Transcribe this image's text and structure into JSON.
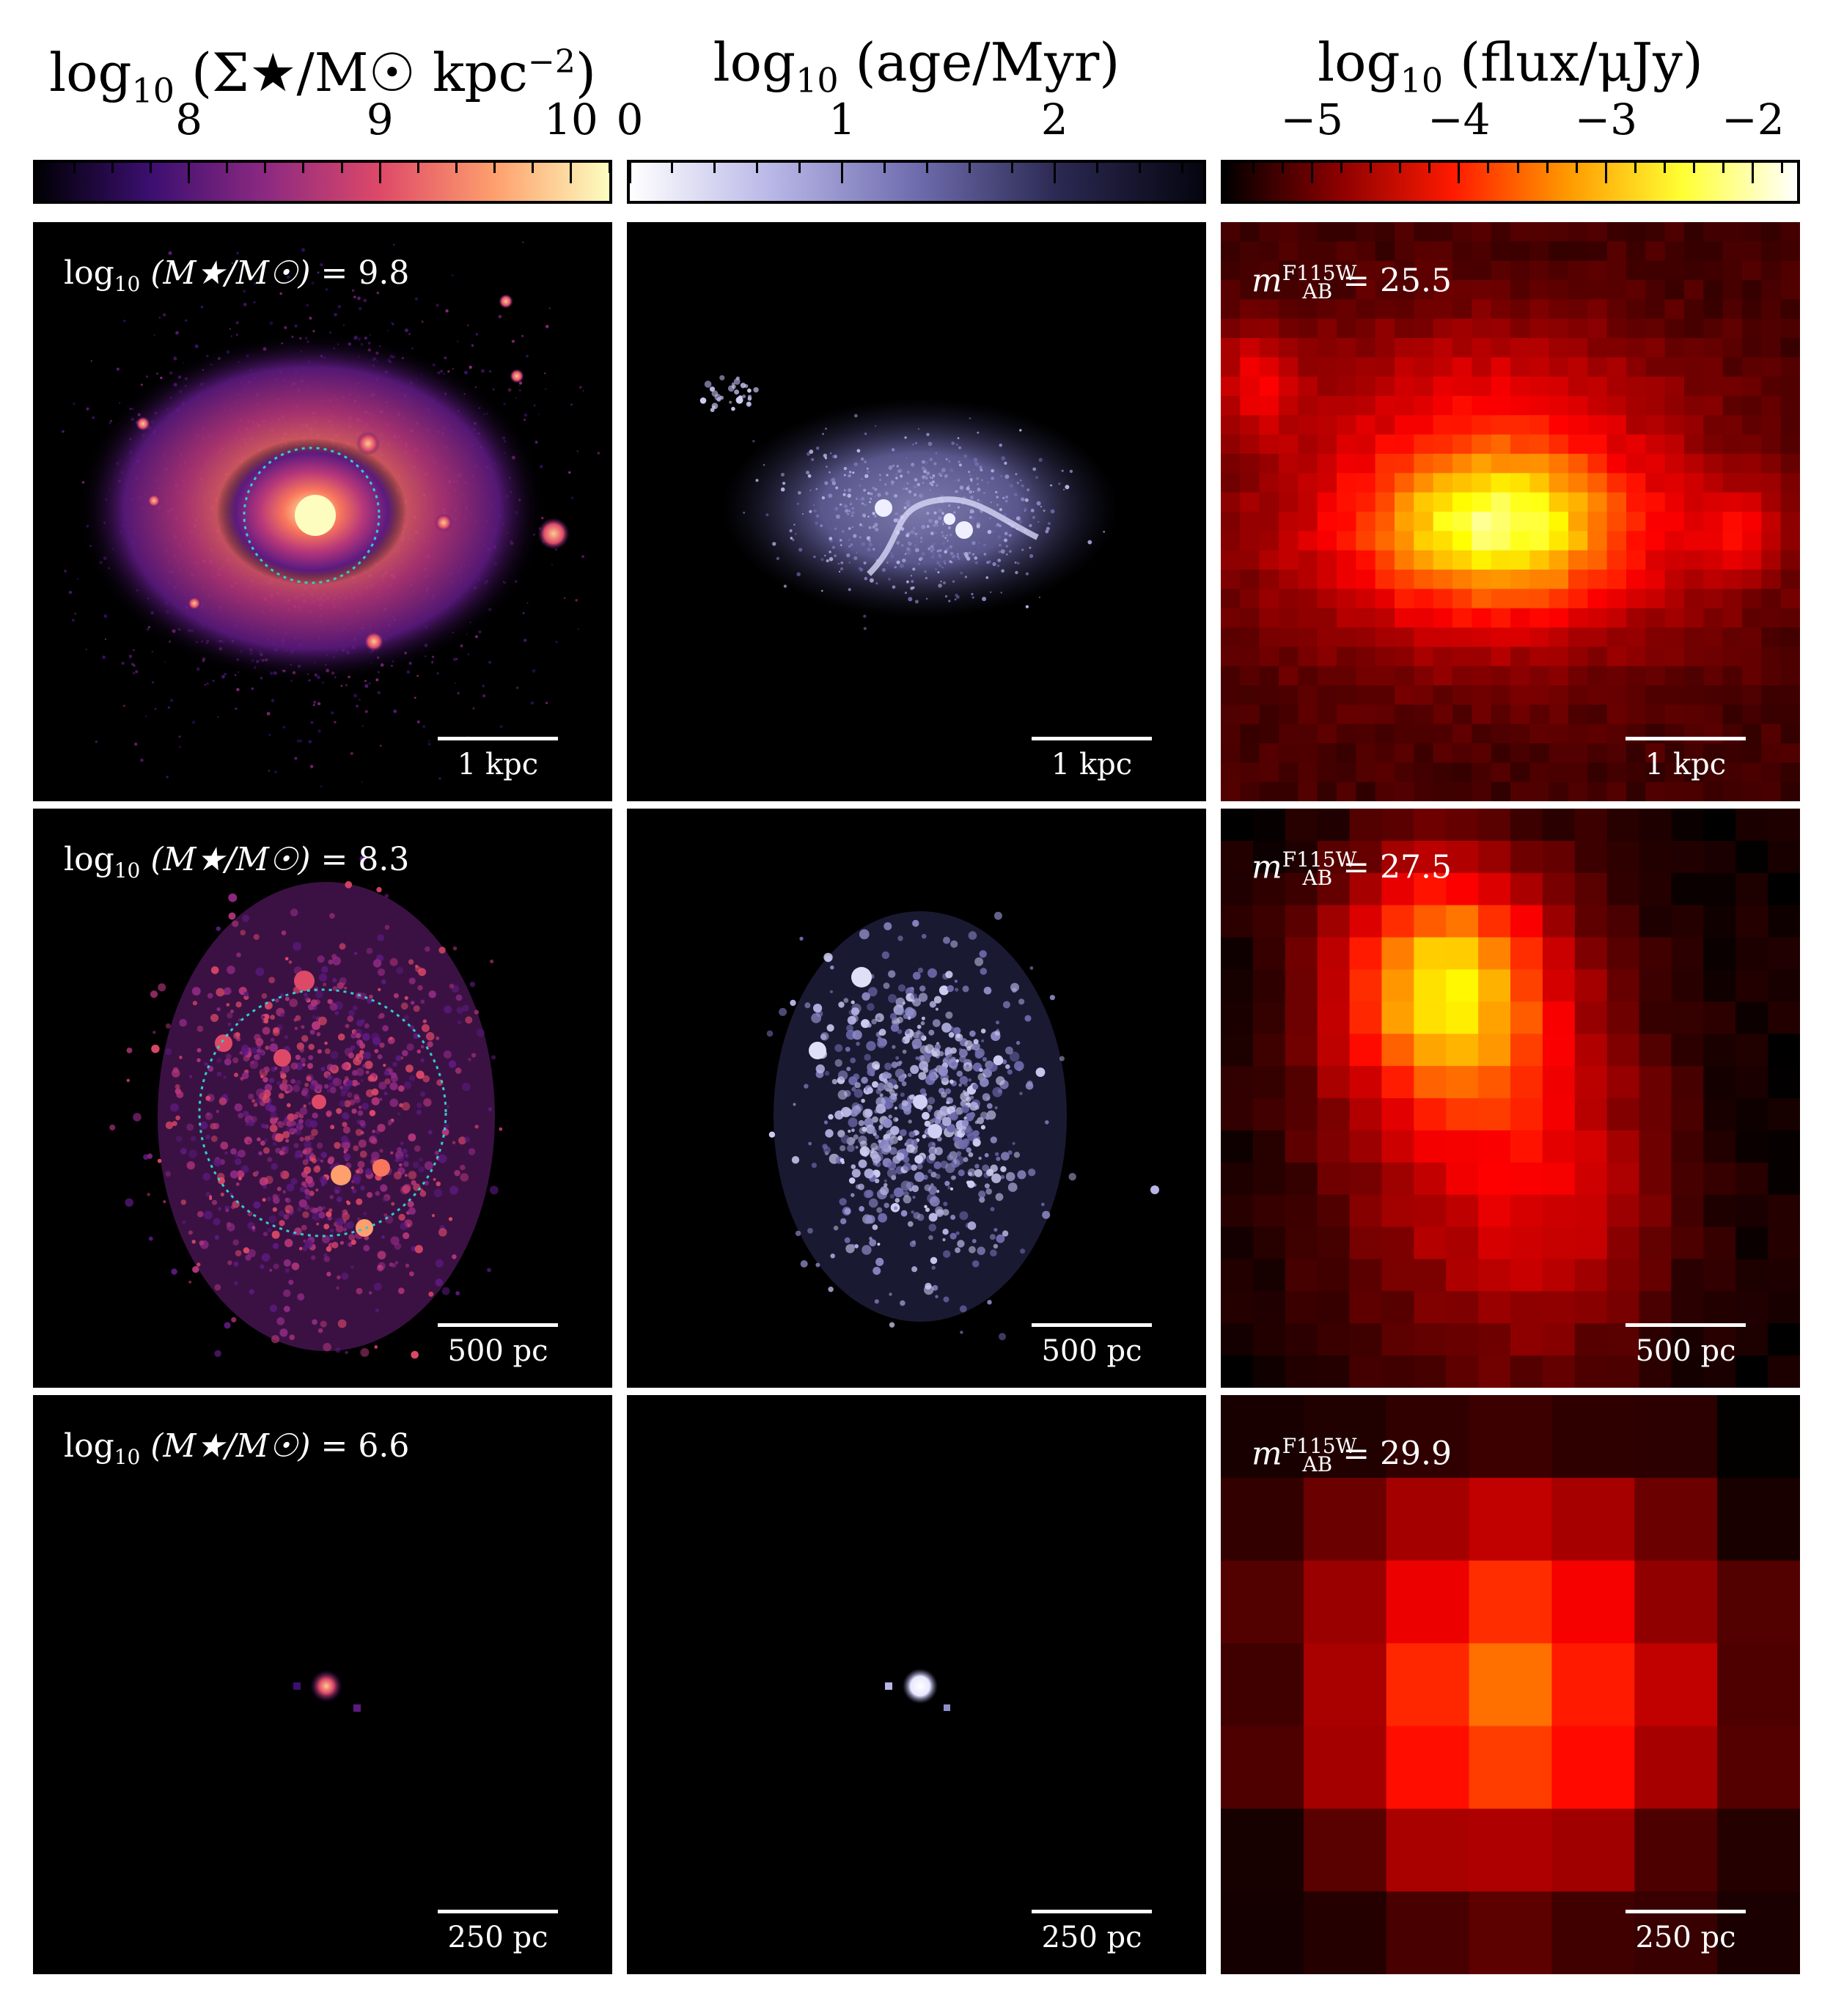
{
  "colorbars": [
    {
      "title_main": "log",
      "title_sub": "10",
      "title_rest": " (Σ★/M☉ kpc",
      "title_sup": "−2",
      "title_end": ")",
      "ticks": [
        "8",
        "9",
        "10"
      ],
      "tick_values": [
        8,
        9,
        10
      ],
      "range": [
        7.2,
        10.2
      ],
      "colormap": "magma",
      "colors": [
        "#000004",
        "#3b0f70",
        "#8c2981",
        "#de4968",
        "#fe9f6d",
        "#fcfdbf"
      ]
    },
    {
      "title_main": "log",
      "title_sub": "10",
      "title_rest": " (age/Myr)",
      "title_sup": "",
      "title_end": "",
      "ticks": [
        "0",
        "1",
        "2"
      ],
      "tick_values": [
        0,
        1,
        2
      ],
      "range": [
        0,
        2.7
      ],
      "colormap": "Purples",
      "colors": [
        "#ffffff",
        "#b8b6e6",
        "#6f6cae",
        "#2a2850",
        "#050510"
      ]
    },
    {
      "title_main": "log",
      "title_sub": "10",
      "title_rest": " (flux/μJy)",
      "title_sup": "",
      "title_end": "",
      "ticks": [
        "−5",
        "−4",
        "−3",
        "−2"
      ],
      "tick_values": [
        -5,
        -4,
        -3,
        -2
      ],
      "range": [
        -5.6,
        -1.7
      ],
      "colormap": "hot",
      "colors": [
        "#000000",
        "#8b0000",
        "#ff1a00",
        "#ff9900",
        "#ffff33",
        "#ffffff"
      ]
    }
  ],
  "rows": [
    {
      "mass_label_pre": "log",
      "mass_label_sub": "10",
      "mass_label_mid": " (M★/M☉) = ",
      "mass_value": "9.8",
      "mag_label": "m",
      "mag_sup": "F115W",
      "mag_sub": "AB",
      "mag_value": "= 25.5",
      "scale_label": "1 kpc"
    },
    {
      "mass_label_pre": "log",
      "mass_label_sub": "10",
      "mass_label_mid": " (M★/M☉) = ",
      "mass_value": "8.3",
      "mag_label": "m",
      "mag_sup": "F115W",
      "mag_sub": "AB",
      "mag_value": "= 27.5",
      "scale_label": "500 pc"
    },
    {
      "mass_label_pre": "log",
      "mass_label_sub": "10",
      "mass_label_mid": " (M★/M☉) = ",
      "mass_value": "6.6",
      "mag_label": "m",
      "mag_sup": "F115W",
      "mag_sub": "AB",
      "mag_value": "= 29.9",
      "scale_label": "250 pc"
    }
  ],
  "aperture_color": "#33cccc"
}
